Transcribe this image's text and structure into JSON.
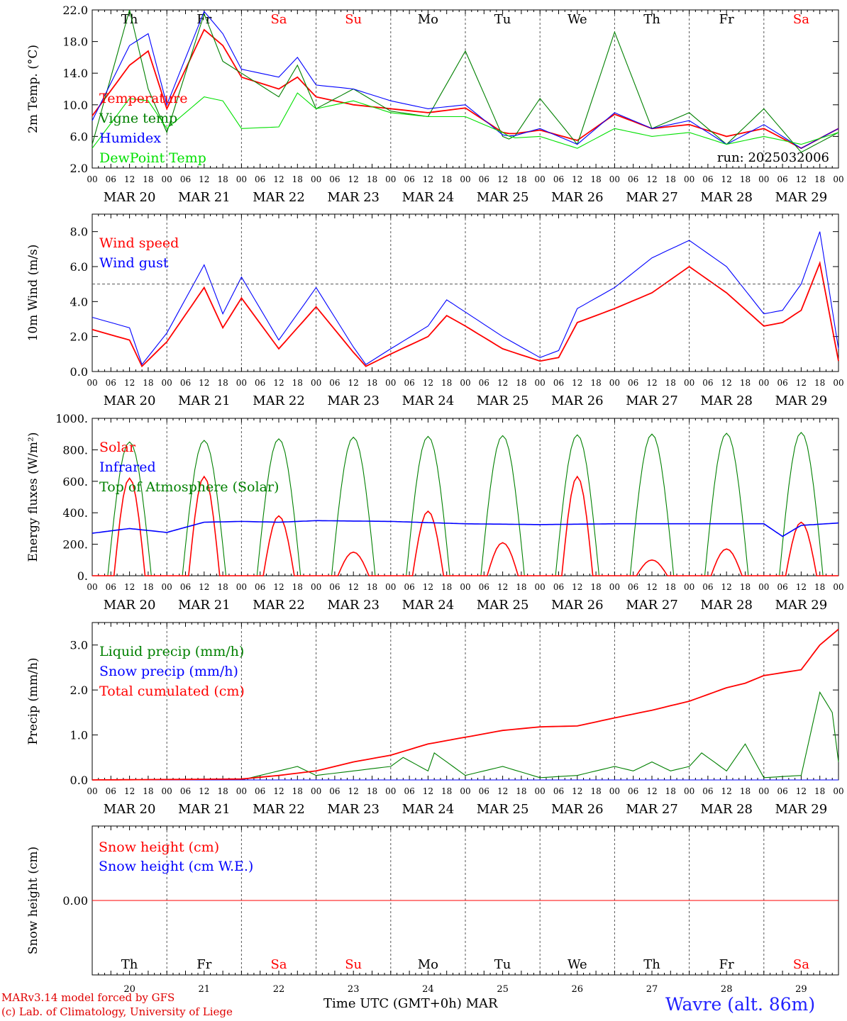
{
  "chart_data": [
    {
      "type": "line",
      "ylabel": "2m Temp. (°C)",
      "ylim": [
        2.0,
        22.0
      ],
      "yticks": [
        "2.0",
        "6.0",
        "10.0",
        "14.0",
        "18.0",
        "22.0"
      ],
      "legend": [
        "Temperature",
        "Vigne temp",
        "Humidex",
        "DewPoint Temp"
      ],
      "annotation": "run: 2025032006",
      "x_hours": [
        0,
        12,
        18,
        24,
        36,
        42,
        48,
        60,
        66,
        72,
        84,
        96,
        108,
        120,
        132,
        135,
        144,
        156,
        168,
        180,
        192,
        204,
        216,
        228,
        240
      ],
      "series": [
        {
          "name": "Temperature",
          "color": "#ff0000",
          "values": [
            8.6,
            15.0,
            16.8,
            9.5,
            19.5,
            17.5,
            13.5,
            12.0,
            13.5,
            11.0,
            10.0,
            9.5,
            9.0,
            9.6,
            6.5,
            6.3,
            6.8,
            5.5,
            8.8,
            7.0,
            7.5,
            6.0,
            7.0,
            4.5,
            7.0
          ]
        },
        {
          "name": "Vigne temp",
          "color": "#008000",
          "values": [
            5.0,
            22.0,
            12.0,
            6.5,
            21.5,
            15.5,
            14.0,
            11.0,
            15.0,
            9.5,
            12.0,
            9.2,
            8.5,
            16.8,
            6.0,
            5.5,
            10.8,
            5.0,
            19.2,
            7.0,
            9.0,
            5.0,
            9.5,
            4.0,
            6.5
          ]
        },
        {
          "name": "Humidex",
          "color": "#0000ff",
          "values": [
            8.0,
            17.5,
            19.0,
            10.0,
            21.8,
            19.0,
            14.5,
            13.5,
            16.0,
            12.5,
            12.0,
            10.5,
            9.5,
            10.0,
            6.2,
            6.0,
            7.0,
            5.0,
            9.0,
            7.0,
            8.0,
            5.0,
            7.5,
            4.5,
            7.0
          ]
        },
        {
          "name": "DewPoint Temp",
          "color": "#00e000",
          "values": [
            4.5,
            10.8,
            10.5,
            7.0,
            11.0,
            10.5,
            7.0,
            7.2,
            11.5,
            9.5,
            10.5,
            9.0,
            8.5,
            8.5,
            6.5,
            5.8,
            6.0,
            4.5,
            7.0,
            6.0,
            6.5,
            5.0,
            6.0,
            5.0,
            6.5
          ]
        }
      ]
    },
    {
      "type": "line",
      "ylabel": "10m Wind (m/s)",
      "ylim": [
        0.0,
        9.0
      ],
      "yticks": [
        "0.0",
        "2.0",
        "4.0",
        "6.0",
        "8.0"
      ],
      "reference_line": 5.0,
      "legend": [
        "Wind speed",
        "Wind gust"
      ],
      "x_hours": [
        0,
        12,
        16,
        24,
        36,
        42,
        48,
        60,
        72,
        84,
        88,
        96,
        108,
        114,
        120,
        132,
        144,
        150,
        156,
        168,
        180,
        192,
        204,
        216,
        222,
        228,
        234,
        240
      ],
      "series": [
        {
          "name": "Wind speed",
          "color": "#ff0000",
          "values": [
            2.4,
            1.8,
            0.3,
            1.7,
            4.8,
            2.5,
            4.2,
            1.3,
            3.7,
            1.1,
            0.3,
            1.0,
            2.0,
            3.2,
            2.6,
            1.3,
            0.6,
            0.8,
            2.8,
            3.6,
            4.5,
            6.0,
            4.5,
            2.6,
            2.8,
            3.5,
            6.2,
            0.6
          ]
        },
        {
          "name": "Wind gust",
          "color": "#0000ff",
          "values": [
            3.1,
            2.5,
            0.4,
            2.2,
            6.1,
            3.3,
            5.4,
            1.8,
            4.8,
            1.4,
            0.4,
            1.3,
            2.6,
            4.1,
            3.4,
            2.0,
            0.8,
            1.2,
            3.6,
            4.8,
            6.5,
            7.5,
            6.0,
            3.3,
            3.5,
            5.0,
            8.0,
            1.3
          ]
        }
      ]
    },
    {
      "type": "line",
      "ylabel": "Energy fluxes (W/m²)",
      "ylim": [
        0,
        1000
      ],
      "yticks": [
        "0.",
        "200.",
        "400.",
        "600.",
        "800.",
        "1000."
      ],
      "legend": [
        "Solar",
        "Infrared",
        "Top of Atmosphere (Solar)"
      ],
      "daily_peak_hour": 12,
      "series": [
        {
          "name": "Solar",
          "color": "#ff0000",
          "daily_peaks": [
            620,
            630,
            380,
            150,
            410,
            210,
            630,
            100,
            170,
            340
          ]
        },
        {
          "name": "Infrared",
          "color": "#0000ff",
          "x_hours": [
            0,
            12,
            24,
            36,
            48,
            60,
            72,
            96,
            120,
            144,
            168,
            192,
            216,
            222,
            228,
            240
          ],
          "values": [
            270,
            300,
            275,
            340,
            345,
            340,
            350,
            345,
            330,
            325,
            330,
            330,
            330,
            250,
            320,
            335
          ]
        },
        {
          "name": "Top of Atmosphere (Solar)",
          "color": "#008000",
          "daily_peaks": [
            850,
            860,
            870,
            880,
            885,
            890,
            895,
            900,
            905,
            910
          ]
        }
      ]
    },
    {
      "type": "line",
      "ylabel": "Precip (mm/h)",
      "ylim": [
        0.0,
        3.5
      ],
      "yticks": [
        "0.0",
        "1.0",
        "2.0",
        "3.0"
      ],
      "legend": [
        "Liquid precip (mm/h)",
        "Snow precip (mm/h)",
        "Total cumulated (cm)"
      ],
      "series": [
        {
          "name": "Liquid precip (mm/h)",
          "color": "#008000",
          "x_hours": [
            0,
            48,
            60,
            66,
            72,
            84,
            96,
            100,
            108,
            110,
            120,
            132,
            144,
            156,
            168,
            174,
            180,
            186,
            192,
            196,
            204,
            210,
            216,
            228,
            234,
            238,
            240
          ],
          "values": [
            0,
            0,
            0.2,
            0.3,
            0.1,
            0.2,
            0.3,
            0.5,
            0.2,
            0.6,
            0.1,
            0.3,
            0.05,
            0.1,
            0.3,
            0.2,
            0.4,
            0.2,
            0.3,
            0.6,
            0.2,
            0.8,
            0.05,
            0.1,
            1.95,
            1.5,
            0.4
          ]
        },
        {
          "name": "Snow precip (mm/h)",
          "color": "#0000ff",
          "x_hours": [
            0,
            240
          ],
          "values": [
            0,
            0
          ]
        },
        {
          "name": "Total cumulated (cm)",
          "color": "#ff0000",
          "x_hours": [
            0,
            48,
            60,
            72,
            84,
            96,
            108,
            120,
            132,
            144,
            156,
            168,
            180,
            192,
            204,
            210,
            216,
            228,
            234,
            240
          ],
          "values": [
            0,
            0.02,
            0.1,
            0.2,
            0.4,
            0.55,
            0.8,
            0.95,
            1.1,
            1.18,
            1.2,
            1.38,
            1.55,
            1.75,
            2.05,
            2.15,
            2.32,
            2.45,
            3.0,
            3.35
          ]
        }
      ]
    },
    {
      "type": "line",
      "ylabel": "Snow height (cm)",
      "ylim": [
        -1,
        1
      ],
      "yticks": [
        "0.00"
      ],
      "legend": [
        "Snow height (cm)",
        "Snow height (cm W.E.)"
      ],
      "series": [
        {
          "name": "Snow height (cm)",
          "color": "#ff0000",
          "x_hours": [
            0,
            240
          ],
          "values": [
            0,
            0
          ]
        },
        {
          "name": "Snow height (cm W.E.)",
          "color": "#0000ff",
          "x_hours": [
            0,
            240
          ],
          "values": [
            0,
            0
          ]
        }
      ]
    }
  ],
  "x_axis": {
    "hour_ticks": [
      "00",
      "06",
      "12",
      "18"
    ],
    "end_tick": "00",
    "dates": [
      "MAR 20",
      "MAR 21",
      "MAR 22",
      "MAR 23",
      "MAR 24",
      "MAR 25",
      "MAR 26",
      "MAR 27",
      "MAR 28",
      "MAR 29"
    ],
    "weekdays": [
      "Th",
      "Fr",
      "Sa",
      "Su",
      "Mo",
      "Tu",
      "We",
      "Th",
      "Fr",
      "Sa"
    ],
    "weekend_color": "#ff0000",
    "day_numbers": [
      "20",
      "21",
      "22",
      "23",
      "24",
      "25",
      "26",
      "27",
      "28",
      "29"
    ],
    "title": "Time UTC (GMT+0h)",
    "month": "MAR"
  },
  "footer": {
    "credit_line1": "MARv3.14 model forced by GFS",
    "credit_line2": "(c) Lab. of Climatology, University of Liege",
    "station": "Wavre (alt. 86m)"
  }
}
